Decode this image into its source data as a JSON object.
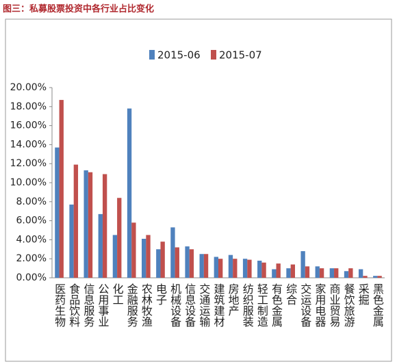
{
  "chart_data": {
    "type": "bar",
    "title": "图三：私募股票投资中各行业占比变化",
    "categories": [
      "医药生物",
      "食品饮料",
      "信息服务",
      "公用事业",
      "化工",
      "金融服务",
      "农林牧渔",
      "电子",
      "机械设备",
      "信息设备",
      "交通运输",
      "建筑建材",
      "房地产",
      "纺织服装",
      "轻工制造",
      "有色金属",
      "综合",
      "交运设备",
      "家用电器",
      "商业贸易",
      "餐饮旅游",
      "采掘",
      "黑色金属"
    ],
    "series": [
      {
        "name": "2015-06",
        "color": "#4f81bd",
        "values": [
          13.7,
          7.7,
          11.3,
          6.7,
          4.5,
          17.8,
          4.1,
          3.0,
          5.3,
          3.3,
          2.5,
          2.2,
          2.4,
          2.0,
          1.8,
          0.9,
          1.0,
          2.8,
          1.2,
          1.0,
          0.7,
          0.9,
          0.2
        ]
      },
      {
        "name": "2015-07",
        "color": "#c0504d",
        "values": [
          18.7,
          11.9,
          11.1,
          10.9,
          8.4,
          5.8,
          4.5,
          3.8,
          3.2,
          3.0,
          2.5,
          2.0,
          2.0,
          1.9,
          1.6,
          1.5,
          1.4,
          1.2,
          1.0,
          1.0,
          1.0,
          0.2,
          0.2
        ]
      }
    ],
    "ylim": [
      0,
      20
    ],
    "yticks": [
      {
        "value": 0,
        "label": "0.00%"
      },
      {
        "value": 2,
        "label": "2.00%"
      },
      {
        "value": 4,
        "label": "4.00%"
      },
      {
        "value": 6,
        "label": "6.00%"
      },
      {
        "value": 8,
        "label": "8.00%"
      },
      {
        "value": 10,
        "label": "10.00%"
      },
      {
        "value": 12,
        "label": "12.00%"
      },
      {
        "value": 14,
        "label": "14.00%"
      },
      {
        "value": 16,
        "label": "16.00%"
      },
      {
        "value": 18,
        "label": "18.00%"
      },
      {
        "value": 20,
        "label": "20.00%"
      }
    ],
    "legend": "top"
  }
}
